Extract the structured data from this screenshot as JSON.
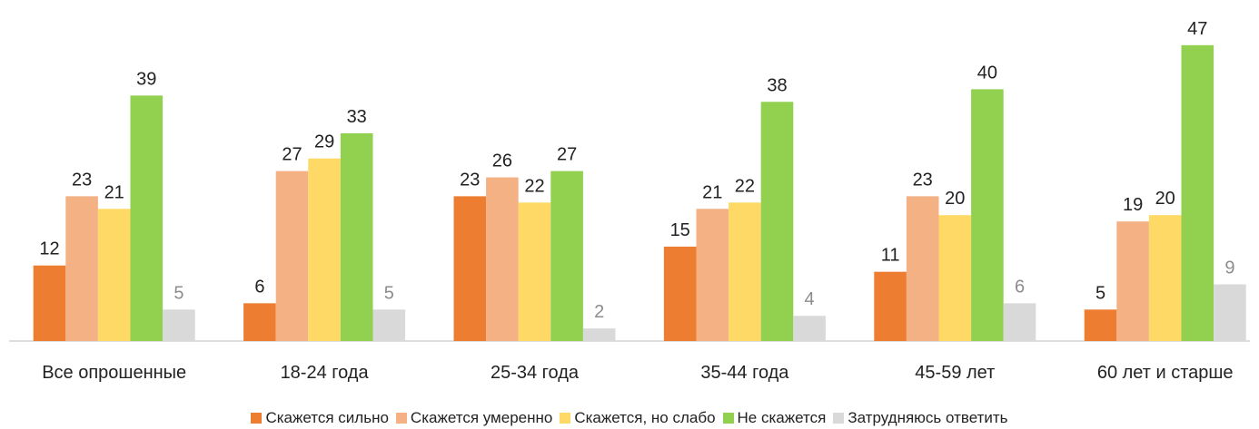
{
  "chart_data": {
    "type": "bar",
    "categories": [
      "Все опрошенные",
      "18-24 года",
      "25-34 года",
      "35-44 года",
      "45-59 лет",
      "60 лет и старше"
    ],
    "series": [
      {
        "name": "Скажется сильно",
        "color": "#ed7d31",
        "values": [
          12,
          6,
          23,
          15,
          11,
          5
        ]
      },
      {
        "name": "Скажется умеренно",
        "color": "#f4b183",
        "values": [
          23,
          27,
          26,
          21,
          23,
          19
        ]
      },
      {
        "name": "Скажется, но слабо",
        "color": "#ffd966",
        "values": [
          21,
          29,
          22,
          22,
          20,
          20
        ]
      },
      {
        "name": "Не скажется",
        "color": "#92d050",
        "values": [
          39,
          33,
          27,
          38,
          40,
          47
        ]
      },
      {
        "name": "Затрудняюсь ответить",
        "color": "#d9d9d9",
        "values": [
          5,
          5,
          2,
          4,
          6,
          9
        ]
      }
    ]
  }
}
